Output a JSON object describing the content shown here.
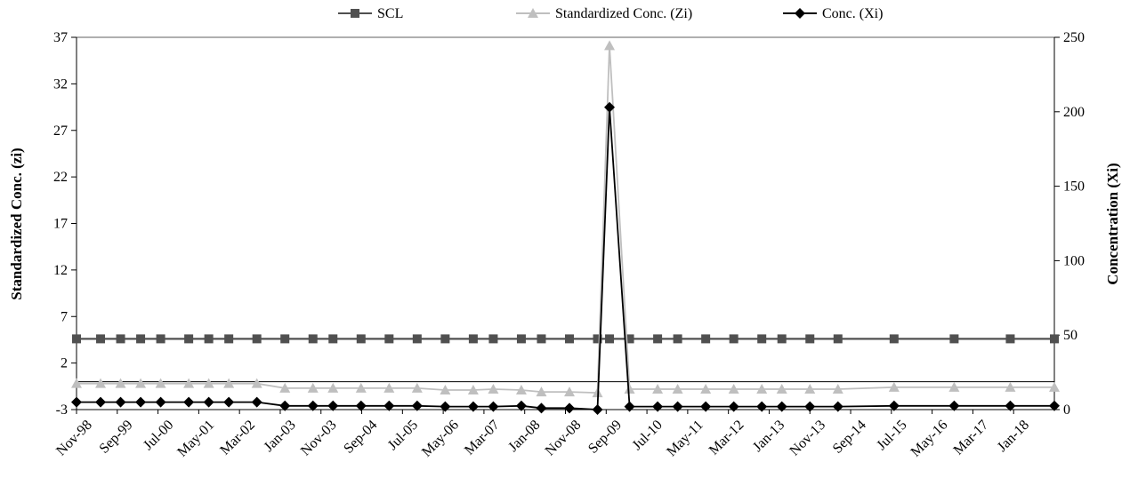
{
  "chart_data": {
    "type": "line",
    "title": "",
    "xlabel": "",
    "ylabel_left": "Standardized Conc. (zi)",
    "ylabel_right": "Concentration (Xi)",
    "ylim_left": [
      -3,
      37
    ],
    "yticks_left": [
      -3,
      2,
      7,
      12,
      17,
      22,
      27,
      32,
      37
    ],
    "ylim_right": [
      0,
      250
    ],
    "yticks_right": [
      0,
      50,
      100,
      150,
      200,
      250
    ],
    "grid": false,
    "legend_position": "top-center",
    "x_tick_labels": [
      "Nov-98",
      "Sep-99",
      "Jul-00",
      "May-01",
      "Mar-02",
      "Jan-03",
      "Nov-03",
      "Sep-04",
      "Jul-05",
      "May-06",
      "Mar-07",
      "Jan-08",
      "Nov-08",
      "Sep-09",
      "Jul-10",
      "May-11",
      "Mar-12",
      "Jan-13",
      "Nov-13",
      "Sep-14",
      "Jul-15",
      "May-16",
      "Mar-17",
      "Jan-18"
    ],
    "x": [
      "1998-11",
      "1999-05",
      "1999-10",
      "2000-03",
      "2000-08",
      "2001-03",
      "2001-08",
      "2002-01",
      "2002-08",
      "2003-03",
      "2003-10",
      "2004-03",
      "2004-10",
      "2005-05",
      "2005-12",
      "2006-07",
      "2007-02",
      "2007-07",
      "2008-02",
      "2008-07",
      "2009-02",
      "2009-09",
      "2009-12",
      "2010-05",
      "2010-12",
      "2011-05",
      "2011-12",
      "2012-07",
      "2013-02",
      "2013-07",
      "2014-02",
      "2014-09",
      "2015-11",
      "2017-02",
      "2018-04",
      "2019-03"
    ],
    "series": [
      {
        "name": "SCL",
        "axis": "left",
        "color": "#505050",
        "marker": "square",
        "values": [
          4.6,
          4.6,
          4.6,
          4.6,
          4.6,
          4.6,
          4.6,
          4.6,
          4.6,
          4.6,
          4.6,
          4.6,
          4.6,
          4.6,
          4.6,
          4.6,
          4.6,
          4.6,
          4.6,
          4.6,
          4.6,
          4.6,
          4.6,
          4.6,
          4.6,
          4.6,
          4.6,
          4.6,
          4.6,
          4.6,
          4.6,
          4.6,
          4.6,
          4.6,
          4.6,
          4.6
        ]
      },
      {
        "name": "Standardized Conc. (Zi)",
        "axis": "left",
        "color": "#bfbfbf",
        "marker": "triangle",
        "values": [
          -0.2,
          -0.2,
          -0.2,
          -0.2,
          -0.2,
          -0.2,
          -0.2,
          -0.2,
          -0.2,
          -0.7,
          -0.7,
          -0.7,
          -0.7,
          -0.7,
          -0.7,
          -0.9,
          -0.9,
          -0.8,
          -0.9,
          -1.1,
          -1.1,
          -1.2,
          36.1,
          -0.8,
          -0.8,
          -0.8,
          -0.8,
          -0.8,
          -0.8,
          -0.8,
          -0.8,
          -0.8,
          -0.6,
          -0.6,
          -0.6,
          -0.6
        ]
      },
      {
        "name": "Conc. (Xi)",
        "axis": "right",
        "color": "#000000",
        "marker": "diamond",
        "values": [
          5,
          5,
          5,
          5,
          5,
          5,
          5,
          5,
          5,
          2.5,
          2.5,
          2.5,
          2.5,
          2.5,
          2.5,
          2,
          2,
          2,
          2.5,
          1,
          1,
          0,
          203,
          2,
          2,
          2,
          2,
          2,
          2,
          2,
          2,
          2,
          2.5,
          2.5,
          2.5,
          2.5
        ]
      }
    ]
  }
}
